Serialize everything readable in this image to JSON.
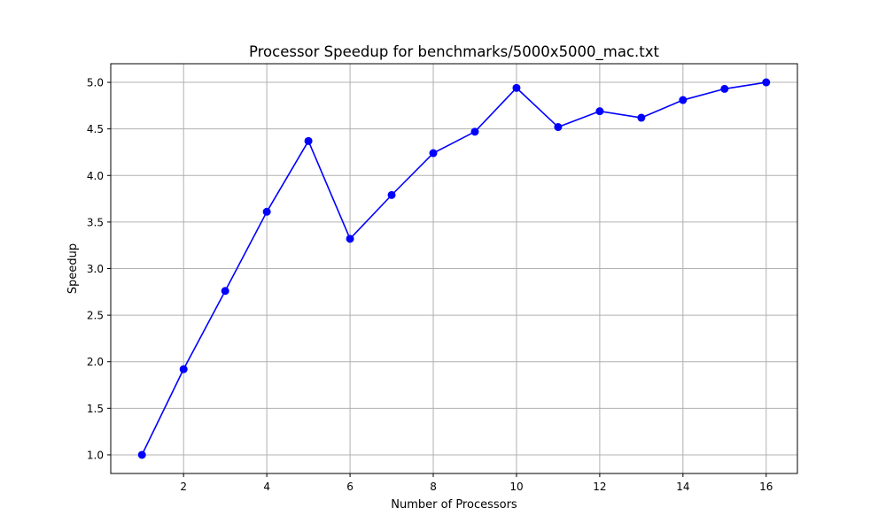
{
  "chart_data": {
    "type": "line",
    "title": "Processor Speedup for benchmarks/5000x5000_mac.txt",
    "xlabel": "Number of Processors",
    "ylabel": "Speedup",
    "xlim": [
      0.25,
      16.75
    ],
    "ylim": [
      0.8,
      5.2
    ],
    "xticks": [
      2,
      4,
      6,
      8,
      10,
      12,
      14,
      16
    ],
    "yticks": [
      1.0,
      1.5,
      2.0,
      2.5,
      3.0,
      3.5,
      4.0,
      4.5,
      5.0
    ],
    "grid": true,
    "series": [
      {
        "color": "#0000ff",
        "marker": "circle",
        "x": [
          1,
          2,
          3,
          4,
          5,
          6,
          7,
          8,
          9,
          10,
          11,
          12,
          13,
          14,
          15,
          16
        ],
        "y": [
          1.0,
          1.92,
          2.76,
          3.61,
          4.37,
          3.32,
          3.79,
          4.24,
          4.47,
          4.94,
          4.52,
          4.69,
          4.62,
          4.81,
          4.93,
          5.0
        ]
      }
    ]
  }
}
